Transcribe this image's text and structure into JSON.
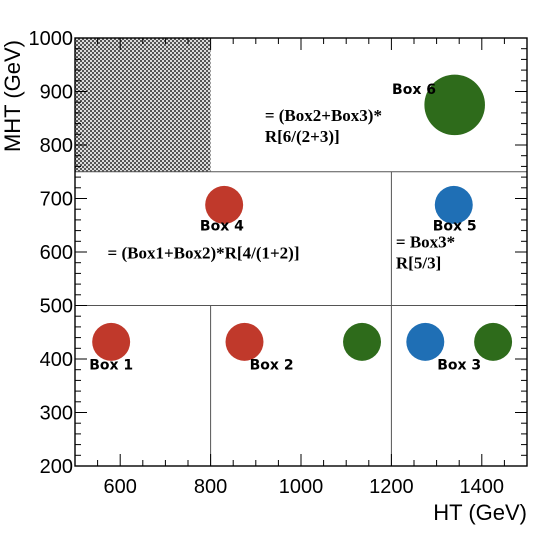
{
  "chart_data": {
    "type": "diagram",
    "xlabel": "HT (GeV)",
    "ylabel": "MHT (GeV)",
    "xlim": [
      500,
      1500
    ],
    "ylim": [
      200,
      1000
    ],
    "xticks": [
      600,
      800,
      1000,
      1200,
      1400
    ],
    "yticks": [
      200,
      300,
      400,
      500,
      600,
      700,
      800,
      900,
      1000
    ],
    "x_minor_step": 50,
    "y_minor_step": 20,
    "hatched_region": {
      "x": [
        500,
        800
      ],
      "y": [
        750,
        1000
      ]
    },
    "boundaries": [
      {
        "axis": "y",
        "value": 750,
        "from": 500,
        "to": 1500
      },
      {
        "axis": "y",
        "value": 500,
        "from": 500,
        "to": 1500
      },
      {
        "axis": "x",
        "value": 800,
        "from": 200,
        "to": 500
      },
      {
        "axis": "x",
        "value": 1200,
        "from": 200,
        "to": 750
      }
    ],
    "boxes": [
      {
        "name": "Box 1",
        "x": 580,
        "y": 380
      },
      {
        "name": "Box 2",
        "x": 935,
        "y": 380
      },
      {
        "name": "Box 3",
        "x": 1350,
        "y": 380
      },
      {
        "name": "Box 4",
        "x": 825,
        "y": 640
      },
      {
        "name": "Box 5",
        "x": 1340,
        "y": 640
      },
      {
        "name": "Box 6",
        "x": 1250,
        "y": 895
      }
    ],
    "formulas": [
      {
        "lines": [
          "= (Box2+Box3)*",
          "R[6/(2+3)]"
        ],
        "x": 920,
        "y": 845
      },
      {
        "lines": [
          "= (Box1+Box2)*R[4/(1+2)]"
        ],
        "x": 572,
        "y": 588
      },
      {
        "lines": [
          "= Box3*",
          "R[5/3]"
        ],
        "x": 1210,
        "y": 608
      }
    ],
    "circles": [
      {
        "x": 580,
        "y": 432,
        "r": 42,
        "color": "#c0392b"
      },
      {
        "x": 875,
        "y": 432,
        "r": 42,
        "color": "#c0392b"
      },
      {
        "x": 1135,
        "y": 432,
        "r": 42,
        "color": "#2e6b1b"
      },
      {
        "x": 1275,
        "y": 432,
        "r": 42,
        "color": "#1f6fb5"
      },
      {
        "x": 1425,
        "y": 432,
        "r": 42,
        "color": "#2e6b1b"
      },
      {
        "x": 830,
        "y": 688,
        "r": 42,
        "color": "#c0392b"
      },
      {
        "x": 1338,
        "y": 688,
        "r": 42,
        "color": "#1f6fb5"
      },
      {
        "x": 1340,
        "y": 875,
        "r": 67,
        "color": "#2e6b1b"
      }
    ]
  }
}
